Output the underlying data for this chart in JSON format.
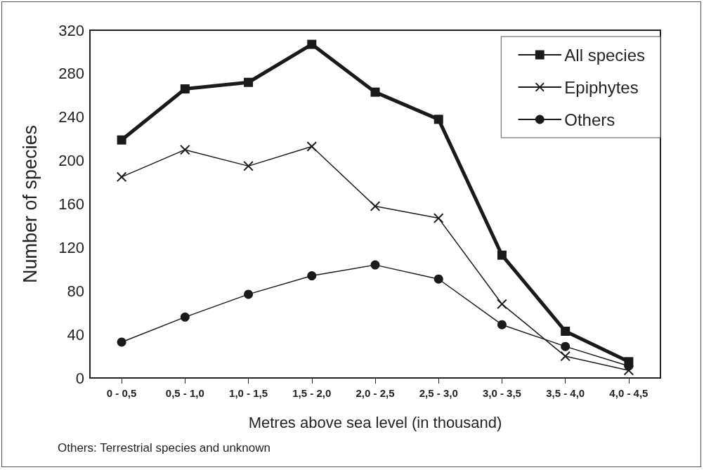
{
  "chart_data": {
    "type": "line",
    "xlabel": "Metres above sea level (in thousand)",
    "ylabel": "Number of species",
    "categories": [
      "0 - 0,5",
      "0,5 - 1,0",
      "1,0 - 1,5",
      "1,5 - 2,0",
      "2,0 - 2,5",
      "2,5 - 3,0",
      "3,0 - 3,5",
      "3,5 - 4,0",
      "4,0 - 4,5"
    ],
    "series": [
      {
        "name": "All species",
        "color": "#1a1a1a",
        "marker": "square",
        "values": [
          219,
          266,
          272,
          307,
          263,
          238,
          113,
          43,
          15
        ]
      },
      {
        "name": "Epiphytes",
        "color": "#1a1a1a",
        "marker": "cross",
        "values": [
          185,
          210,
          195,
          213,
          158,
          147,
          68,
          20,
          7
        ]
      },
      {
        "name": "Others",
        "color": "#1a1a1a",
        "marker": "circle",
        "values": [
          33,
          56,
          77,
          94,
          104,
          91,
          49,
          29,
          11
        ]
      }
    ],
    "ylim": [
      0,
      320
    ],
    "yticks": [
      0,
      40,
      80,
      120,
      160,
      200,
      240,
      280,
      320
    ],
    "grid": false,
    "legend": "top right",
    "line_style": "solid",
    "annotations": [
      "Others: Terrestrial species and unknown"
    ]
  }
}
